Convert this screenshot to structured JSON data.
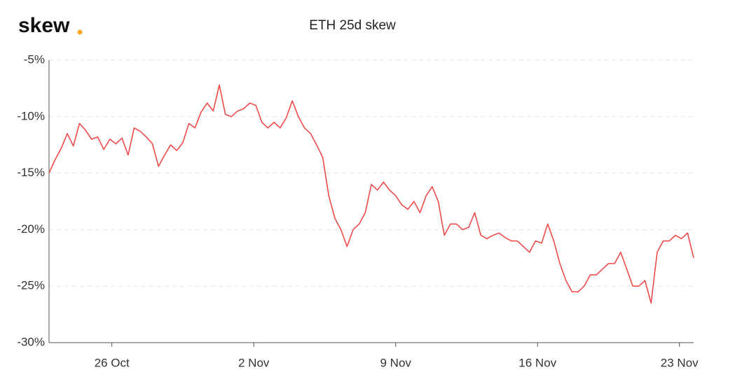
{
  "brand": "skew",
  "chart_data": {
    "type": "line",
    "title": "ETH 25d skew",
    "x": [
      -3.1,
      -2.8,
      -2.5,
      -2.2,
      -1.9,
      -1.6,
      -1.3,
      -1.0,
      -0.7,
      -0.4,
      -0.1,
      0.2,
      0.5,
      0.8,
      1.1,
      1.4,
      1.7,
      2.0,
      2.3,
      2.6,
      2.9,
      3.2,
      3.5,
      3.8,
      4.1,
      4.4,
      4.7,
      5.0,
      5.3,
      5.6,
      5.9,
      6.2,
      6.5,
      6.8,
      7.1,
      7.4,
      7.7,
      8.0,
      8.3,
      8.6,
      8.9,
      9.2,
      9.5,
      9.8,
      10.1,
      10.4,
      10.7,
      11.0,
      11.3,
      11.6,
      11.9,
      12.2,
      12.5,
      12.8,
      13.1,
      13.4,
      13.7,
      14.0,
      14.3,
      14.6,
      14.9,
      15.2,
      15.5,
      15.8,
      16.1,
      16.4,
      16.7,
      17.0,
      17.3,
      17.6,
      17.9,
      18.2,
      18.5,
      18.8,
      19.1,
      19.4,
      19.7,
      20.0,
      20.3,
      20.6,
      20.9,
      21.2,
      21.5,
      21.8,
      22.1,
      22.4,
      22.7,
      23.0,
      23.3,
      23.6,
      23.9,
      24.2,
      24.5,
      24.8,
      25.1,
      25.4,
      25.7,
      26.0,
      26.3,
      26.6,
      26.9,
      27.2,
      27.5,
      27.8,
      28.1,
      28.4,
      28.7
    ],
    "series": [
      {
        "color": "#f04b4b",
        "values": [
          -15,
          -13.8,
          -12.8,
          -11.5,
          -12.6,
          -10.6,
          -11.2,
          -12,
          -11.8,
          -12.9,
          -12,
          -12.4,
          -11.9,
          -13.4,
          -11,
          -11.3,
          -11.8,
          -12.4,
          -14.4,
          -13.4,
          -12.5,
          -13,
          -12.3,
          -10.6,
          -11,
          -9.6,
          -8.8,
          -9.5,
          -7.2,
          -9.8,
          -10,
          -9.5,
          -9.3,
          -8.8,
          -9,
          -10.5,
          -11,
          -10.5,
          -11,
          -10.1,
          -8.6,
          -10,
          -11,
          -11.5,
          -12.5,
          -13.6,
          -17,
          -19,
          -20,
          -21.5,
          -20,
          -19.5,
          -18.5,
          -16,
          -16.5,
          -15.8,
          -16.5,
          -17,
          -17.8,
          -18.2,
          -17.5,
          -18.5,
          -17,
          -16.2,
          -17.5,
          -20.5,
          -19.5,
          -19.5,
          -20,
          -19.8,
          -18.5,
          -20.5,
          -20.8,
          -20.5,
          -20.3,
          -20.7,
          -21,
          -21,
          -21.5,
          -22,
          -21,
          -21.2,
          -19.5,
          -21,
          -23,
          -24.5,
          -25.5,
          -25.5,
          -25,
          -24,
          -24,
          -23.5,
          -23,
          -23,
          -22,
          -23.5,
          -25,
          -25,
          -24.5,
          -26.5,
          -22,
          -21,
          -21,
          -20.5,
          -20.8,
          -20.3,
          -22.5
        ]
      }
    ],
    "xlim": [
      -3.1,
      28.7
    ],
    "xticks": [
      {
        "value": 0,
        "label": "26 Oct"
      },
      {
        "value": 7,
        "label": "2 Nov"
      },
      {
        "value": 14,
        "label": "9 Nov"
      },
      {
        "value": 21,
        "label": "16 Nov"
      },
      {
        "value": 28,
        "label": "23 Nov"
      }
    ],
    "ylim": [
      -30,
      -5
    ],
    "yticks": [
      {
        "value": -30,
        "label": "-30%"
      },
      {
        "value": -25,
        "label": "-25%"
      },
      {
        "value": -20,
        "label": "-20%"
      },
      {
        "value": -15,
        "label": "-15%"
      },
      {
        "value": -10,
        "label": "-10%"
      },
      {
        "value": -5,
        "label": "-5%"
      }
    ],
    "grid": true
  }
}
